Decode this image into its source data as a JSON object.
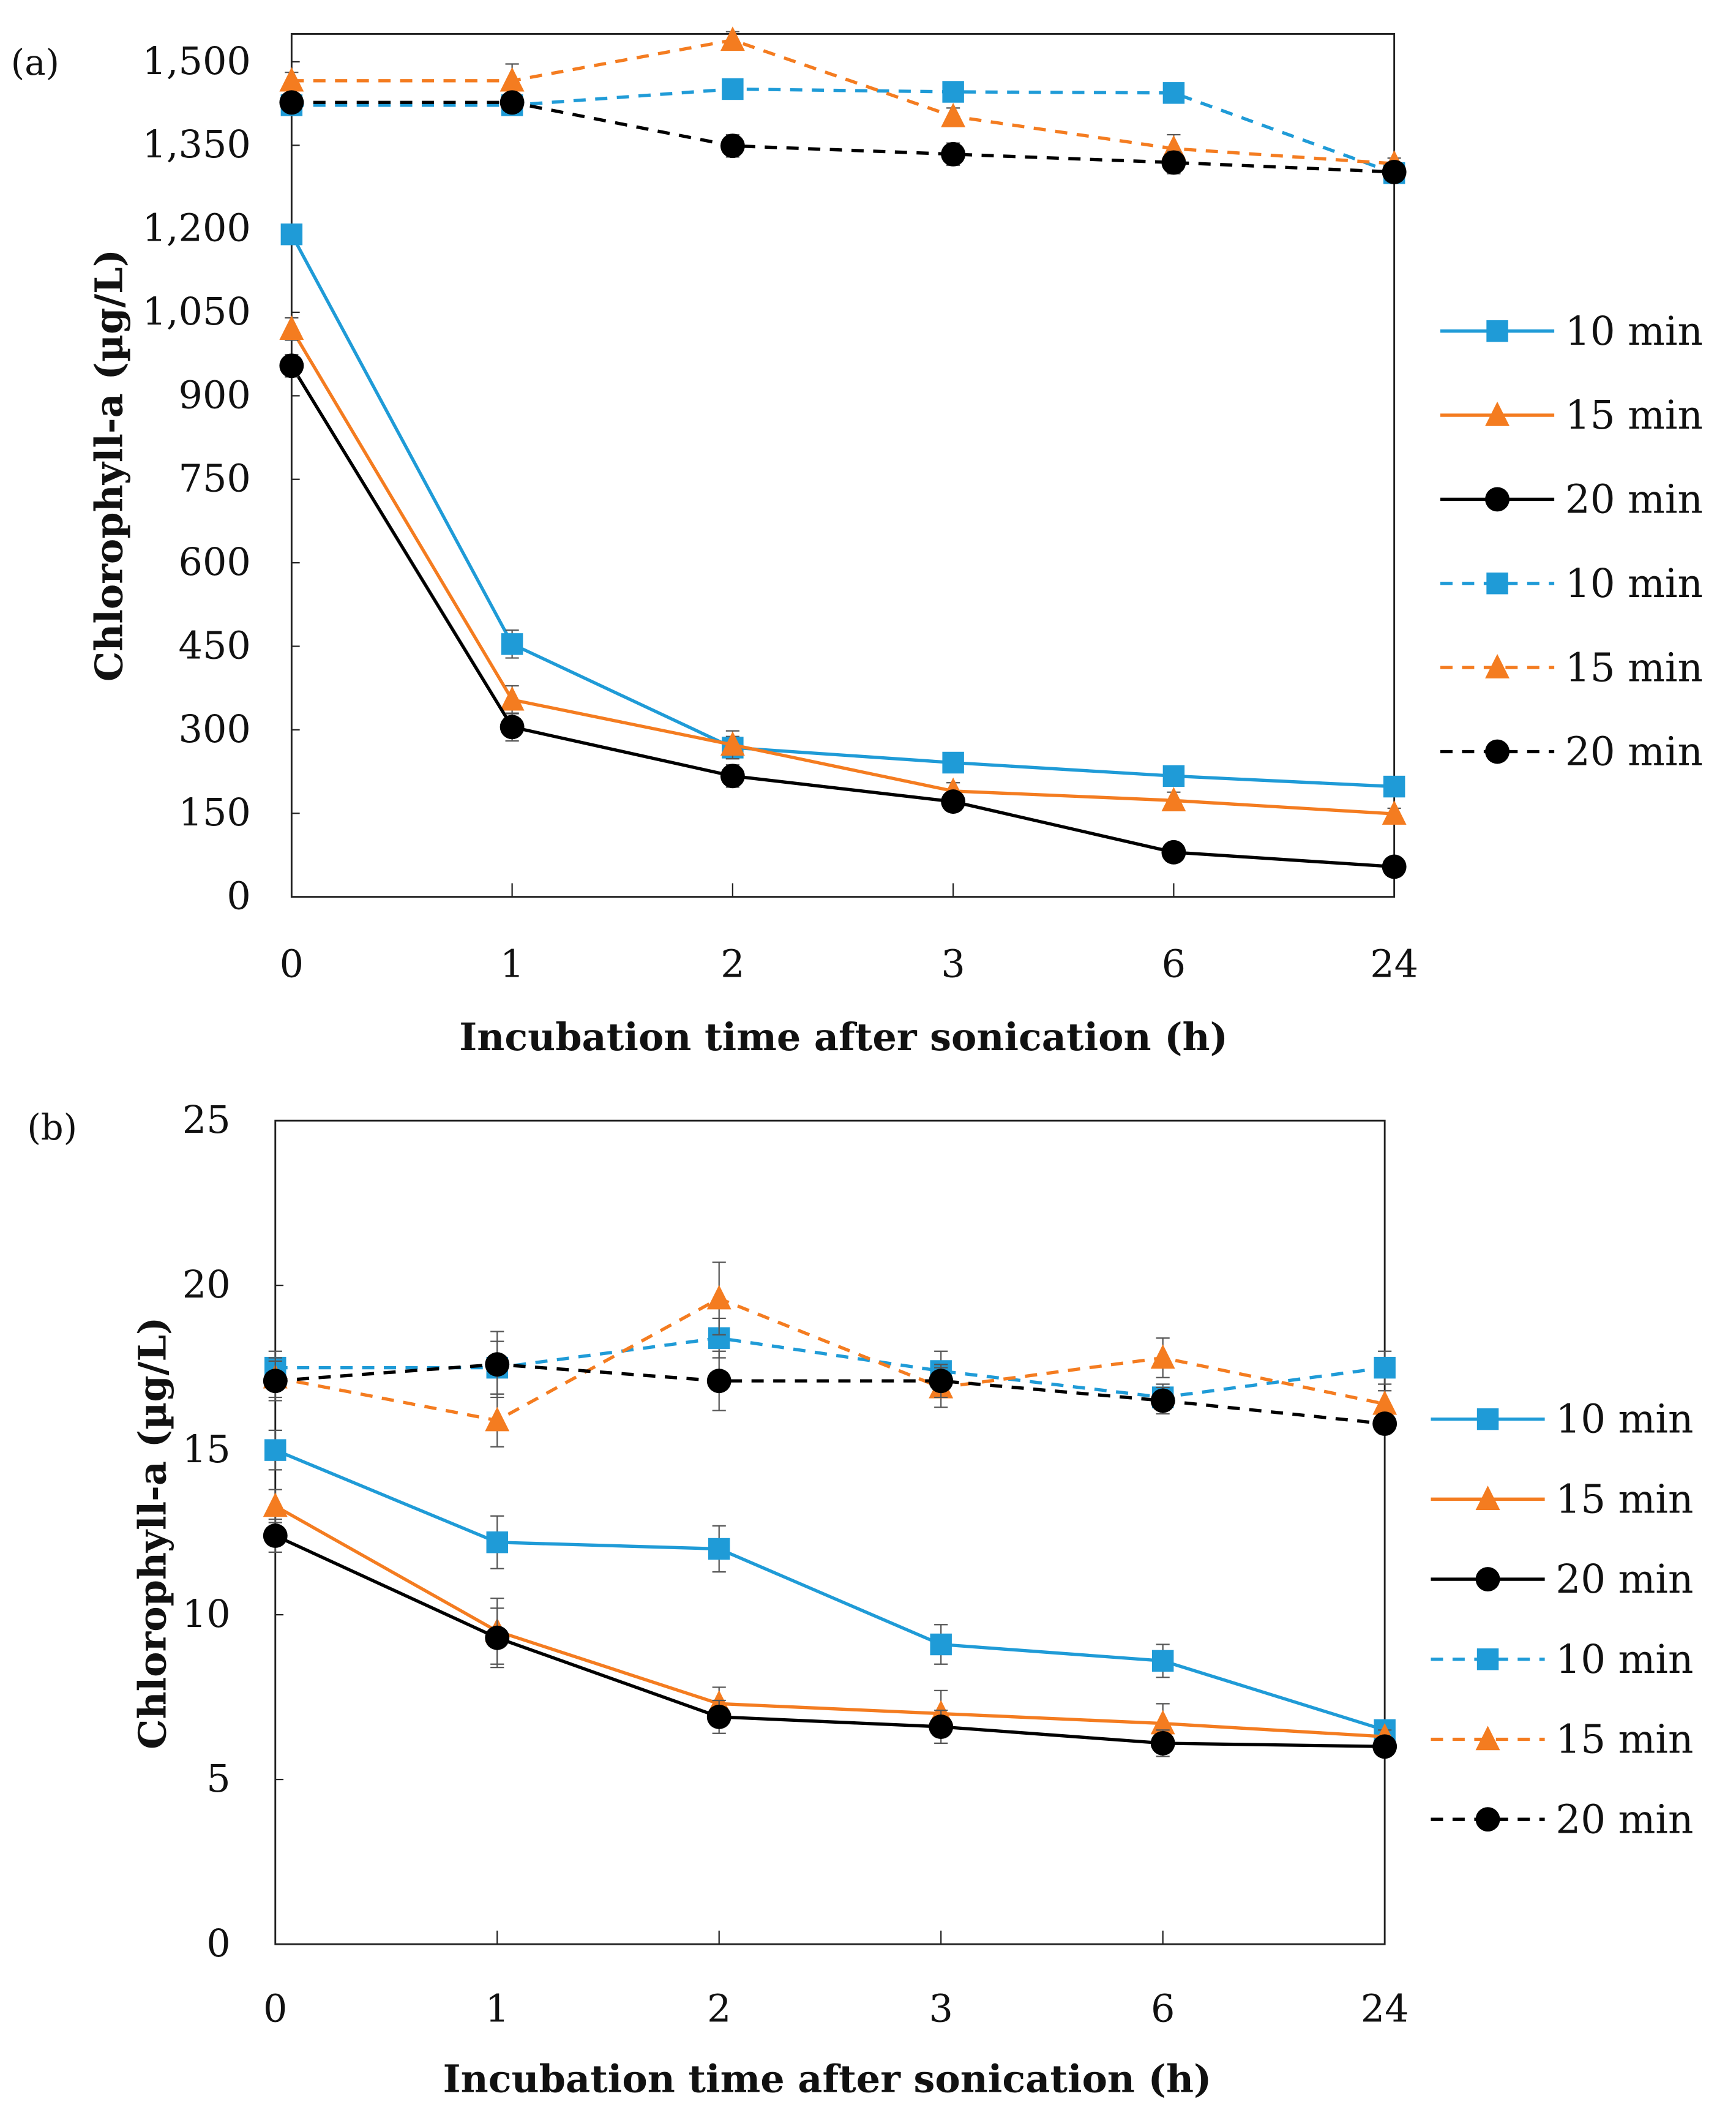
{
  "chart_data": [
    {
      "type": "line",
      "panel_label": "(a)",
      "panel_letter": "a",
      "xlabel": "Incubation time after sonication (h)",
      "ylabel": "Chlorophyll-a (µg/L)",
      "categories": [
        "0",
        "1",
        "2",
        "3",
        "6",
        "24"
      ],
      "ylim": [
        0,
        1550
      ],
      "yticks": [
        0,
        150,
        300,
        450,
        600,
        750,
        900,
        1050,
        1200,
        1350,
        1500
      ],
      "ytick_labels": [
        "0",
        "150",
        "300",
        "450",
        "600",
        "750",
        "900",
        "1,050",
        "1,200",
        "1,350",
        "1,500"
      ],
      "grid": false,
      "legend_position": "right",
      "series": [
        {
          "name": "10 min",
          "style": "solid",
          "marker": "square",
          "color": "#1f9bd7",
          "values": [
            1190,
            454,
            268,
            241,
            217,
            198
          ],
          "errors": [
            15,
            25,
            20,
            15,
            15,
            10
          ]
        },
        {
          "name": "15 min",
          "style": "solid",
          "marker": "triangle",
          "color": "#f47c20",
          "values": [
            1020,
            354,
            273,
            190,
            173,
            149
          ],
          "errors": [
            20,
            25,
            25,
            15,
            15,
            10
          ]
        },
        {
          "name": "20 min",
          "style": "solid",
          "marker": "circle",
          "color": "#000000",
          "values": [
            954,
            305,
            217,
            171,
            80,
            54
          ],
          "errors": [
            20,
            25,
            20,
            15,
            15,
            10
          ]
        },
        {
          "name": "10 min",
          "style": "dashed",
          "marker": "square",
          "color": "#1f9bd7",
          "values": [
            1422,
            1422,
            1451,
            1446,
            1444,
            1300
          ],
          "errors": [
            15,
            15,
            15,
            15,
            15,
            10
          ]
        },
        {
          "name": "15 min",
          "style": "dashed",
          "marker": "triangle",
          "color": "#f47c20",
          "values": [
            1466,
            1466,
            1539,
            1402,
            1344,
            1317
          ],
          "errors": [
            15,
            30,
            15,
            15,
            25,
            10
          ]
        },
        {
          "name": "20 min",
          "style": "dashed",
          "marker": "circle",
          "color": "#000000",
          "values": [
            1427,
            1427,
            1349,
            1334,
            1319,
            1302
          ],
          "errors": [
            10,
            15,
            20,
            20,
            20,
            10
          ]
        }
      ]
    },
    {
      "type": "line",
      "panel_label": "(b)",
      "panel_letter": "b",
      "xlabel": "Incubation time after sonication (h)",
      "ylabel": "Chlorophyll-a (µg/L)",
      "categories": [
        "0",
        "1",
        "2",
        "3",
        "6",
        "24"
      ],
      "ylim": [
        0,
        25
      ],
      "yticks": [
        0,
        5,
        10,
        15,
        20,
        25
      ],
      "ytick_labels": [
        "0",
        "5",
        "10",
        "15",
        "20",
        "25"
      ],
      "grid": false,
      "legend_position": "right",
      "series": [
        {
          "name": "10 min",
          "style": "solid",
          "marker": "square",
          "color": "#1f9bd7",
          "values": [
            15.0,
            12.2,
            12.0,
            9.1,
            8.6,
            6.5
          ],
          "errors": [
            0.6,
            0.8,
            0.7,
            0.6,
            0.5,
            0.3
          ]
        },
        {
          "name": "15 min",
          "style": "solid",
          "marker": "triangle",
          "color": "#f47c20",
          "values": [
            13.3,
            9.5,
            7.3,
            7.0,
            6.7,
            6.3
          ],
          "errors": [
            0.5,
            1.0,
            0.5,
            0.7,
            0.6,
            0.2
          ]
        },
        {
          "name": "20 min",
          "style": "solid",
          "marker": "circle",
          "color": "#000000",
          "values": [
            12.4,
            9.3,
            6.9,
            6.6,
            6.1,
            6.0
          ],
          "errors": [
            0.5,
            0.9,
            0.5,
            0.5,
            0.4,
            0.2
          ]
        },
        {
          "name": "10 min",
          "style": "dashed",
          "marker": "square",
          "color": "#1f9bd7",
          "values": [
            17.5,
            17.5,
            18.4,
            17.4,
            16.6,
            17.5
          ],
          "errors": [
            0.5,
            0.8,
            0.6,
            0.6,
            0.4,
            0.5
          ]
        },
        {
          "name": "15 min",
          "style": "dashed",
          "marker": "triangle",
          "color": "#f47c20",
          "values": [
            17.2,
            15.9,
            19.6,
            16.9,
            17.8,
            16.4
          ],
          "errors": [
            0.6,
            0.8,
            1.1,
            0.6,
            0.6,
            0.4
          ]
        },
        {
          "name": "20 min",
          "style": "dashed",
          "marker": "circle",
          "color": "#000000",
          "values": [
            17.1,
            17.6,
            17.1,
            17.1,
            16.5,
            15.8
          ],
          "errors": [
            0.6,
            1.0,
            0.9,
            0.5,
            0.4,
            0.3
          ]
        }
      ]
    }
  ]
}
